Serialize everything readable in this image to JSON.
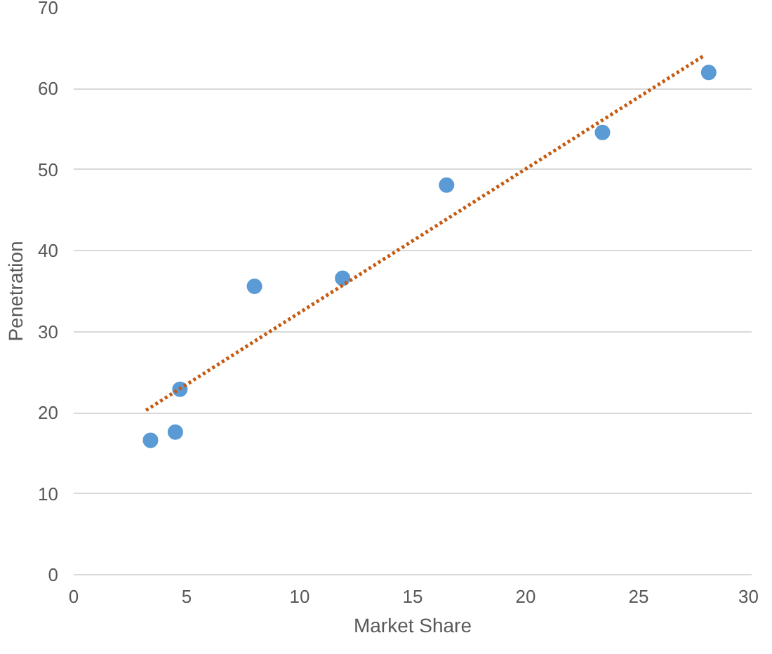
{
  "chart_data": {
    "type": "scatter",
    "xlabel": "Market Share",
    "ylabel": "Penetration",
    "xlim": [
      0,
      30
    ],
    "ylim": [
      0,
      70
    ],
    "xticks": [
      0,
      5,
      10,
      15,
      20,
      25,
      30
    ],
    "yticks": [
      0,
      10,
      20,
      30,
      40,
      50,
      60,
      70
    ],
    "grid": "y",
    "series": [
      {
        "marker": "circle",
        "color": "#5b9bd5",
        "x": [
          3.4,
          4.5,
          4.7,
          8.0,
          11.9,
          16.5,
          23.4,
          28.1
        ],
        "values": [
          16.6,
          17.6,
          22.9,
          35.6,
          36.6,
          48.1,
          54.6,
          62.0
        ]
      },
      {
        "type": "line",
        "color": "#c55a11",
        "line_style": "dotted",
        "x": [
          3.2,
          27.9
        ],
        "values": [
          20.3,
          64.1
        ]
      }
    ]
  }
}
